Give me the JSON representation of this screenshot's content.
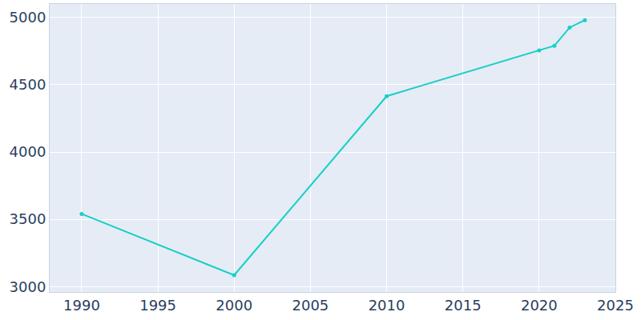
{
  "chart_data": {
    "type": "line",
    "x": [
      1990,
      2000,
      2010,
      2020,
      2021,
      2022,
      2023
    ],
    "values": [
      3540,
      3085,
      4415,
      4755,
      4790,
      4925,
      4980
    ],
    "color": "#17cfc5",
    "marker": "circle",
    "xlim": [
      1987.9,
      2025
    ],
    "ylim": [
      2960,
      5100
    ],
    "xticks": [
      1990,
      1995,
      2000,
      2005,
      2010,
      2015,
      2020,
      2025
    ],
    "yticks": [
      3000,
      3500,
      4000,
      4500,
      5000
    ],
    "grid": true
  }
}
